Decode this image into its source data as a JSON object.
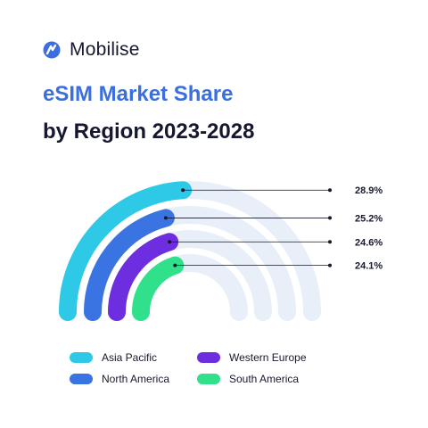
{
  "brand": {
    "name": "Mobilise",
    "logo_icon": "mobilise-logo-icon",
    "color": "#3b6fe0"
  },
  "title": "eSIM Market Share",
  "subtitle": "by Region 2023-2028",
  "colors": {
    "track": "#e9eff8",
    "label_text": "#16182f",
    "connector": "#16182f"
  },
  "chart_data": {
    "type": "radial-bar",
    "title": "eSIM Market Share",
    "subtitle": "by Region 2023-2028",
    "unit": "%",
    "series": [
      {
        "name": "Asia Pacific",
        "value": 28.9,
        "label": "28.9%",
        "color": "#2ec9e6"
      },
      {
        "name": "North America",
        "value": 25.2,
        "label": "25.2%",
        "color": "#3a73e2"
      },
      {
        "name": "Western Europe",
        "value": 24.6,
        "label": "24.6%",
        "color": "#6d2ee0"
      },
      {
        "name": "South America",
        "value": 24.1,
        "label": "24.1%",
        "color": "#30e08a"
      }
    ],
    "legend_position": "bottom"
  }
}
